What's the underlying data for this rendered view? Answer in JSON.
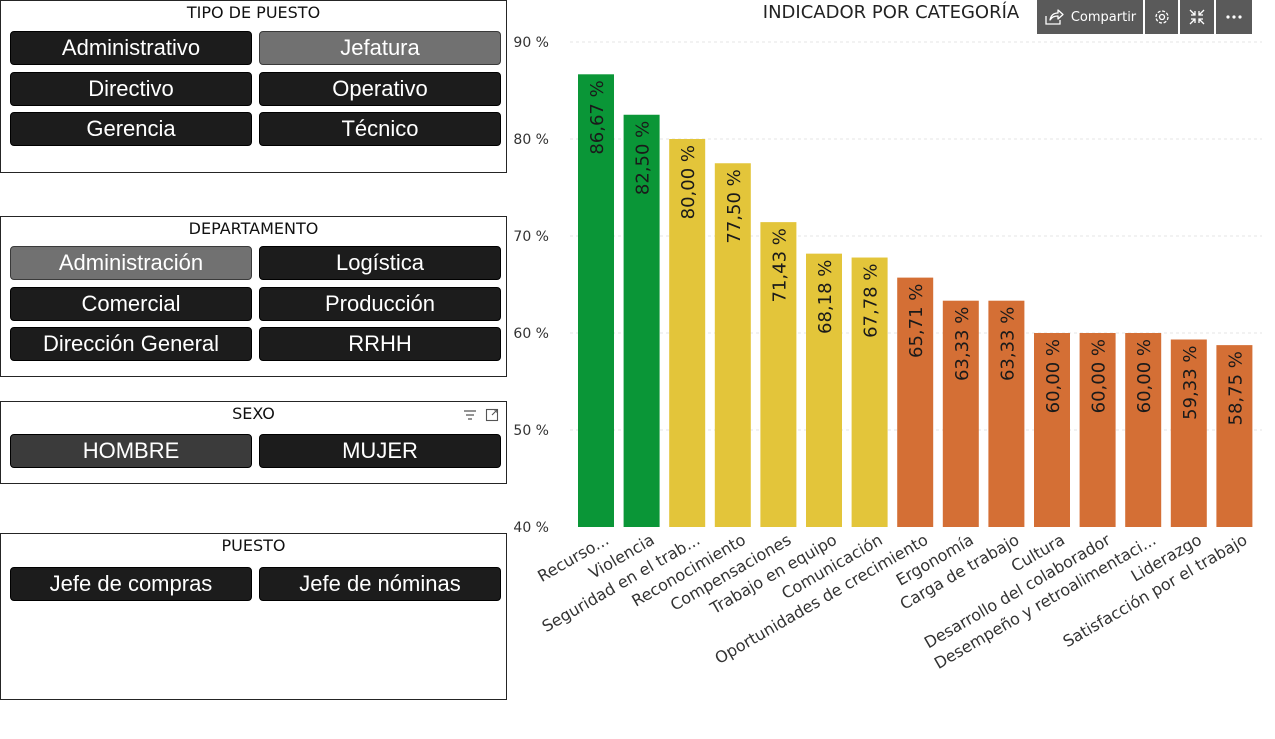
{
  "slicers": [
    {
      "title": "TIPO DE PUESTO",
      "items": [
        {
          "label": "Administrativo",
          "selected": false
        },
        {
          "label": "Jefatura",
          "selected": true
        },
        {
          "label": "Directivo",
          "selected": false
        },
        {
          "label": "Operativo",
          "selected": false
        },
        {
          "label": "Gerencia",
          "selected": false
        },
        {
          "label": "Técnico",
          "selected": false
        }
      ]
    },
    {
      "title": "DEPARTAMENTO",
      "items": [
        {
          "label": "Administración",
          "selected": true
        },
        {
          "label": "Logística",
          "selected": false
        },
        {
          "label": "Comercial",
          "selected": false
        },
        {
          "label": "Producción",
          "selected": false
        },
        {
          "label": "Dirección General",
          "selected": false
        },
        {
          "label": "RRHH",
          "selected": false
        }
      ]
    },
    {
      "title": "SEXO",
      "items": [
        {
          "label": "HOMBRE",
          "selected": true
        },
        {
          "label": "MUJER",
          "selected": false
        }
      ],
      "header_icons": [
        "filter-icon",
        "focus-mode-icon"
      ]
    },
    {
      "title": "PUESTO",
      "items": [
        {
          "label": "Jefe de compras",
          "selected": false
        },
        {
          "label": "Jefe de nóminas",
          "selected": false
        }
      ]
    }
  ],
  "toolbar": {
    "share_label": "Compartir",
    "icons": [
      "share-icon",
      "settings-icon",
      "collapse-icon",
      "more-options-icon"
    ]
  },
  "chart_data": {
    "type": "bar",
    "title": "INDICADOR POR CATEGORÍA",
    "categories": [
      "Recurso...",
      "Violencia",
      "Seguridad en el trab...",
      "Reconocimiento",
      "Compensaciones",
      "Trabajo en equipo",
      "Comunicación",
      "Oportunidades de crecimiento",
      "Ergonomía",
      "Carga de trabajo",
      "Cultura",
      "Desarrollo del colaborador",
      "Desempeño y retroalimentaci...",
      "Liderazgo",
      "Satisfacción por el trabajo"
    ],
    "values": [
      86.67,
      82.5,
      80.0,
      77.5,
      71.43,
      68.18,
      67.78,
      65.71,
      63.33,
      63.33,
      60.0,
      60.0,
      60.0,
      59.33,
      58.75
    ],
    "value_labels": [
      "86,67 %",
      "82,50 %",
      "80,00 %",
      "77,50 %",
      "71,43 %",
      "68,18 %",
      "67,78 %",
      "65,71 %",
      "63,33 %",
      "63,33 %",
      "60,00 %",
      "60,00 %",
      "60,00 %",
      "59,33 %",
      "58,75 %"
    ],
    "bar_colors": [
      "#0a9637",
      "#0a9637",
      "#e3c53a",
      "#e3c53a",
      "#e3c53a",
      "#e3c53a",
      "#e3c53a",
      "#d46f35",
      "#d46f35",
      "#d46f35",
      "#d46f35",
      "#d46f35",
      "#d46f35",
      "#d46f35",
      "#d46f35"
    ],
    "yticks": [
      "40 %",
      "50 %",
      "60 %",
      "70 %",
      "80 %",
      "90 %"
    ],
    "ylim": [
      40,
      90
    ],
    "grid": true
  }
}
